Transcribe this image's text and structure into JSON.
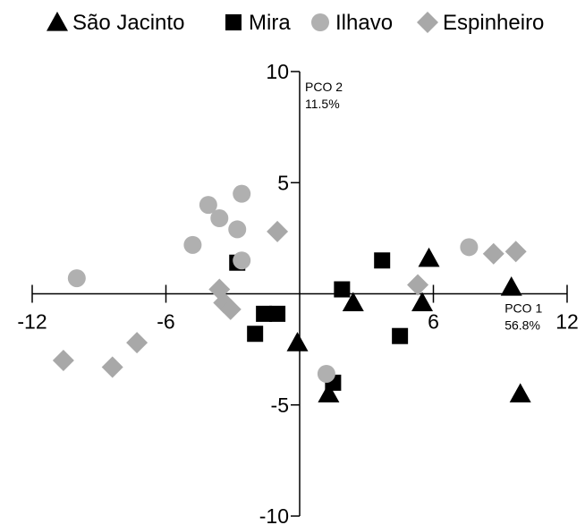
{
  "chart_data": {
    "type": "scatter",
    "title": "",
    "xlabel": "PCO 1",
    "xlabel_pct": "56.8%",
    "ylabel": "PCO 2",
    "ylabel_pct": "11.5%",
    "xlim": [
      -12,
      12
    ],
    "ylim": [
      -10,
      10
    ],
    "x_ticks": [
      -12,
      -6,
      6,
      12
    ],
    "y_ticks": [
      10,
      5,
      -5,
      -10
    ],
    "grid": false,
    "legend_position": "top",
    "series": [
      {
        "name": "São Jacinto",
        "marker": "triangle",
        "color": "#000000",
        "points": [
          [
            5.8,
            1.6
          ],
          [
            5.5,
            -0.4
          ],
          [
            2.4,
            -0.4
          ],
          [
            -0.1,
            -2.2
          ],
          [
            1.3,
            -4.5
          ],
          [
            9.5,
            0.3
          ],
          [
            9.9,
            -4.5
          ]
        ]
      },
      {
        "name": "Mira",
        "marker": "square",
        "color": "#000000",
        "points": [
          [
            -2.8,
            1.4
          ],
          [
            -1.6,
            -0.9
          ],
          [
            -1.0,
            -0.9
          ],
          [
            -2.0,
            -1.8
          ],
          [
            1.9,
            0.2
          ],
          [
            3.7,
            1.5
          ],
          [
            4.5,
            -1.9
          ],
          [
            1.5,
            -4.0
          ]
        ]
      },
      {
        "name": "Ilhavo",
        "marker": "circle",
        "color": "#b0b0b0",
        "points": [
          [
            -10.0,
            0.7
          ],
          [
            -4.1,
            4.0
          ],
          [
            -3.6,
            3.4
          ],
          [
            -2.6,
            4.5
          ],
          [
            -2.8,
            2.9
          ],
          [
            -4.8,
            2.2
          ],
          [
            -2.6,
            1.5
          ],
          [
            7.6,
            2.1
          ],
          [
            1.2,
            -3.6
          ]
        ]
      },
      {
        "name": "Espinheiro",
        "marker": "diamond",
        "color": "#a8a8a8",
        "points": [
          [
            -10.6,
            -3.0
          ],
          [
            -8.4,
            -3.3
          ],
          [
            -7.3,
            -2.2
          ],
          [
            -3.6,
            0.2
          ],
          [
            -3.4,
            -0.4
          ],
          [
            -3.1,
            -0.7
          ],
          [
            -1.0,
            2.8
          ],
          [
            5.3,
            0.4
          ],
          [
            8.7,
            1.8
          ],
          [
            9.7,
            1.9
          ]
        ]
      }
    ]
  }
}
